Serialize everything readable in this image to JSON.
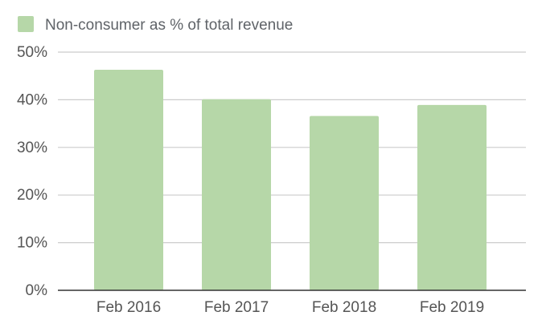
{
  "chart_data": {
    "type": "bar",
    "categories": [
      "Feb 2016",
      "Feb 2017",
      "Feb 2018",
      "Feb 2019"
    ],
    "series": [
      {
        "name": "Non-consumer as % of total revenue",
        "values": [
          46.3,
          40.1,
          36.6,
          38.9
        ],
        "color": "#b6d7a8"
      }
    ],
    "title": "",
    "xlabel": "",
    "ylabel": "",
    "ylim": [
      0,
      50
    ],
    "yticks": [
      "0%",
      "10%",
      "20%",
      "30%",
      "40%",
      "50%"
    ],
    "grid": true,
    "legend_position": "top-left"
  }
}
